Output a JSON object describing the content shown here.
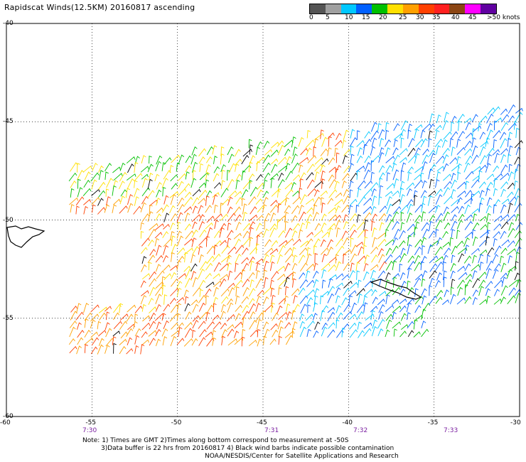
{
  "title": "Rapidscat Winds(12.5KM) 20160817 ascending",
  "colorbar": {
    "labels": [
      "0",
      "5",
      "10",
      "15",
      "20",
      "25",
      "30",
      "35",
      "40",
      "45",
      ">50 knots"
    ],
    "colors": [
      "#555555",
      "#a0a0a0",
      "#00c8ff",
      "#0060ff",
      "#00c000",
      "#ffe000",
      "#ffa000",
      "#ff4000",
      "#ff2020",
      "#8b4513",
      "#ff00ff",
      "#6000a0"
    ]
  },
  "map": {
    "lat_labels": [
      "-40",
      "-45",
      "-50",
      "-55",
      "-60"
    ],
    "lon_labels": [
      "-60",
      "-55",
      "-50",
      "-45",
      "-40",
      "-35",
      "-30"
    ],
    "time_labels": [
      "7:30",
      "7:31",
      "7:32",
      "7:33"
    ]
  },
  "notes": [
    "Note: 1) Times are GMT 2)Times along bottom correspond to measurement at -50S",
    "3)Data buffer is 22 hrs from 20160817 4) Black wind barbs indicate possible contamination",
    "NOAA/NESDIS/Center for Satellite Applications and Research"
  ]
}
